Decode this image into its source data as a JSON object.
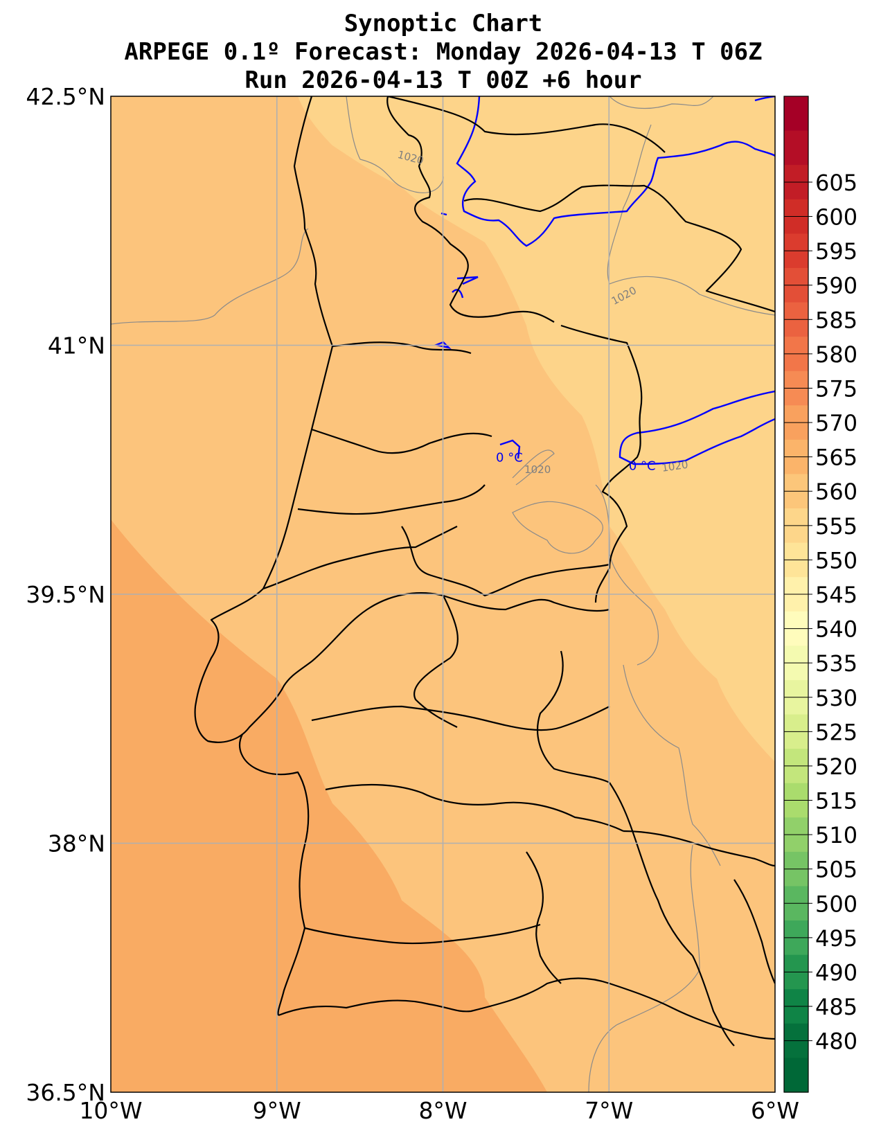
{
  "title": {
    "line1": "Synoptic Chart",
    "line2": "ARPEGE 0.1º Forecast: Monday 2026-04-13 T 06Z",
    "line3": "Run 2026-04-13 T 00Z +6 hour"
  },
  "map": {
    "lon_range": [
      -10,
      -6
    ],
    "lat_range": [
      36.5,
      42.5
    ],
    "x_ticks": [
      {
        "value": -10,
        "label": "10°W"
      },
      {
        "value": -9,
        "label": "9°W"
      },
      {
        "value": -8,
        "label": "8°W"
      },
      {
        "value": -7,
        "label": "7°W"
      },
      {
        "value": -6,
        "label": "6°W"
      }
    ],
    "y_ticks": [
      {
        "value": 42.5,
        "label": "42.5°N"
      },
      {
        "value": 41,
        "label": "41°N"
      },
      {
        "value": 39.5,
        "label": "39.5°N"
      },
      {
        "value": 38,
        "label": "38°N"
      },
      {
        "value": 36.5,
        "label": "36.5°N"
      }
    ],
    "grid": true,
    "fill_colors": {
      "band_570": "#f9ab63",
      "band_565": "#fcc47c",
      "band_560": "#fdd48a"
    }
  },
  "isobar_labels": [
    {
      "text": "1020",
      "lon": -8.2,
      "lat": 42.11,
      "angle": 15
    },
    {
      "text": "1020",
      "lon": -6.9,
      "lat": 41.28,
      "angle": -28
    },
    {
      "text": "1020",
      "lon": -7.43,
      "lat": 40.23,
      "angle": 0
    },
    {
      "text": "1020",
      "lon": -6.6,
      "lat": 40.25,
      "angle": -8
    }
  ],
  "temp_labels": [
    {
      "text": "0 °C",
      "lon": -7.6,
      "lat": 40.3
    },
    {
      "text": "0 °C",
      "lon": -6.8,
      "lat": 40.25
    }
  ],
  "colorbar": {
    "labels": [
      "605",
      "600",
      "595",
      "590",
      "585",
      "580",
      "575",
      "570",
      "565",
      "560",
      "555",
      "550",
      "545",
      "540",
      "535",
      "530",
      "525",
      "520",
      "515",
      "510",
      "505",
      "500",
      "495",
      "490",
      "485",
      "480"
    ],
    "colors": [
      "#a50026",
      "#b40e26",
      "#c21d26",
      "#d02d27",
      "#db3c2e",
      "#e34f37",
      "#eb6240",
      "#f27649",
      "#f68b54",
      "#f9a15e",
      "#fbb46a",
      "#fcc67a",
      "#fdd68a",
      "#fee498",
      "#fff1ab",
      "#fffcbc",
      "#f4fab0",
      "#e8f59f",
      "#d8ee8c",
      "#c3e67c",
      "#aadc6d",
      "#91d06a",
      "#76c465",
      "#5ab760",
      "#3ea85a",
      "#24964f",
      "#0f8446",
      "#05713c",
      "#006837"
    ]
  }
}
